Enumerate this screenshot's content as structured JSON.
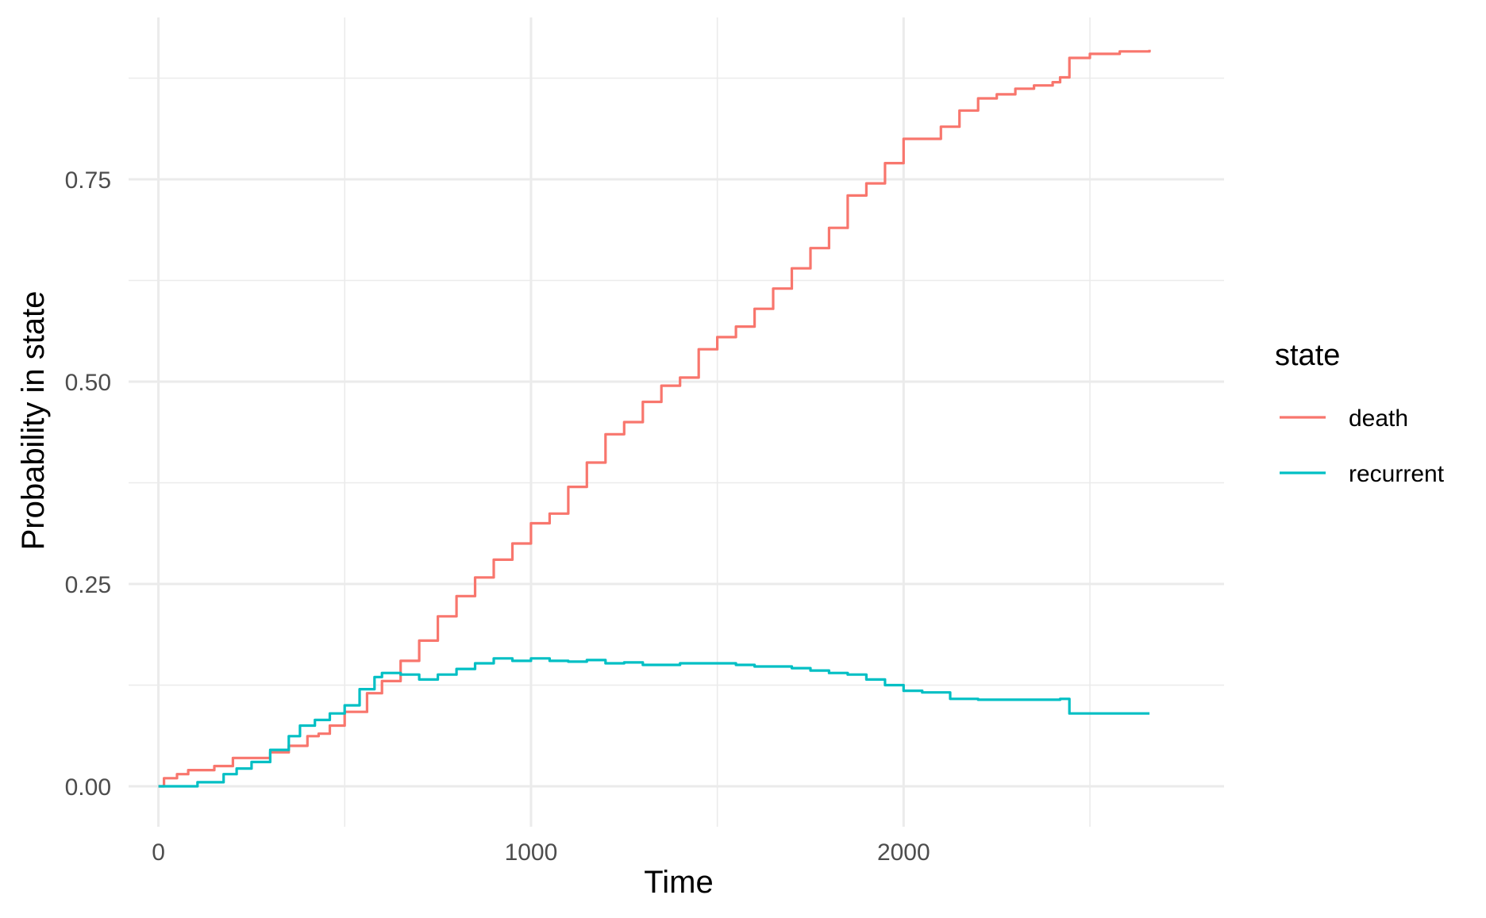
{
  "chart_data": {
    "type": "line",
    "title": "",
    "xlabel": "Time",
    "ylabel": "Probability in state",
    "xlim": [
      -80,
      2860
    ],
    "ylim": [
      -0.05,
      0.95
    ],
    "x_ticks": [
      0,
      1000,
      2000
    ],
    "x_tick_labels": [
      "0",
      "1000",
      "2000"
    ],
    "y_ticks": [
      0,
      0.25,
      0.5,
      0.75
    ],
    "y_tick_labels": [
      "0.00",
      "0.25",
      "0.50",
      "0.75"
    ],
    "grid": true,
    "legend": {
      "title": "state",
      "position": "right"
    },
    "series": [
      {
        "name": "death",
        "color": "#F8766D",
        "points": [
          [
            0,
            0
          ],
          [
            15,
            0.01
          ],
          [
            50,
            0.015
          ],
          [
            80,
            0.02
          ],
          [
            150,
            0.025
          ],
          [
            200,
            0.035
          ],
          [
            300,
            0.042
          ],
          [
            350,
            0.05
          ],
          [
            400,
            0.062
          ],
          [
            430,
            0.065
          ],
          [
            460,
            0.075
          ],
          [
            500,
            0.092
          ],
          [
            560,
            0.115
          ],
          [
            600,
            0.13
          ],
          [
            650,
            0.155
          ],
          [
            700,
            0.18
          ],
          [
            750,
            0.21
          ],
          [
            800,
            0.235
          ],
          [
            850,
            0.258
          ],
          [
            900,
            0.28
          ],
          [
            950,
            0.3
          ],
          [
            1000,
            0.325
          ],
          [
            1050,
            0.337
          ],
          [
            1100,
            0.37
          ],
          [
            1150,
            0.4
          ],
          [
            1200,
            0.435
          ],
          [
            1250,
            0.45
          ],
          [
            1300,
            0.475
          ],
          [
            1350,
            0.495
          ],
          [
            1400,
            0.505
          ],
          [
            1450,
            0.54
          ],
          [
            1500,
            0.555
          ],
          [
            1550,
            0.568
          ],
          [
            1600,
            0.59
          ],
          [
            1650,
            0.615
          ],
          [
            1700,
            0.64
          ],
          [
            1750,
            0.665
          ],
          [
            1800,
            0.69
          ],
          [
            1850,
            0.73
          ],
          [
            1900,
            0.745
          ],
          [
            1950,
            0.77
          ],
          [
            2000,
            0.8
          ],
          [
            2100,
            0.815
          ],
          [
            2150,
            0.835
          ],
          [
            2200,
            0.85
          ],
          [
            2250,
            0.855
          ],
          [
            2300,
            0.862
          ],
          [
            2350,
            0.866
          ],
          [
            2400,
            0.87
          ],
          [
            2420,
            0.876
          ],
          [
            2440,
            0.876
          ],
          [
            2445,
            0.9
          ],
          [
            2500,
            0.905
          ],
          [
            2580,
            0.908
          ],
          [
            2660,
            0.91
          ]
        ]
      },
      {
        "name": "recurrent",
        "color": "#00BFC4",
        "points": [
          [
            0,
            0
          ],
          [
            100,
            0
          ],
          [
            105,
            0.005
          ],
          [
            160,
            0.005
          ],
          [
            175,
            0.015
          ],
          [
            210,
            0.022
          ],
          [
            250,
            0.03
          ],
          [
            300,
            0.045
          ],
          [
            350,
            0.062
          ],
          [
            380,
            0.075
          ],
          [
            420,
            0.082
          ],
          [
            460,
            0.09
          ],
          [
            500,
            0.1
          ],
          [
            540,
            0.12
          ],
          [
            580,
            0.135
          ],
          [
            600,
            0.14
          ],
          [
            650,
            0.138
          ],
          [
            700,
            0.132
          ],
          [
            750,
            0.138
          ],
          [
            800,
            0.145
          ],
          [
            850,
            0.152
          ],
          [
            900,
            0.158
          ],
          [
            950,
            0.155
          ],
          [
            1000,
            0.158
          ],
          [
            1050,
            0.155
          ],
          [
            1100,
            0.154
          ],
          [
            1150,
            0.156
          ],
          [
            1200,
            0.152
          ],
          [
            1250,
            0.153
          ],
          [
            1300,
            0.15
          ],
          [
            1350,
            0.15
          ],
          [
            1400,
            0.152
          ],
          [
            1500,
            0.152
          ],
          [
            1550,
            0.15
          ],
          [
            1600,
            0.148
          ],
          [
            1700,
            0.146
          ],
          [
            1750,
            0.143
          ],
          [
            1800,
            0.14
          ],
          [
            1850,
            0.138
          ],
          [
            1900,
            0.132
          ],
          [
            1950,
            0.125
          ],
          [
            2000,
            0.118
          ],
          [
            2050,
            0.116
          ],
          [
            2120,
            0.116
          ],
          [
            2125,
            0.108
          ],
          [
            2200,
            0.107
          ],
          [
            2300,
            0.107
          ],
          [
            2390,
            0.107
          ],
          [
            2420,
            0.108
          ],
          [
            2440,
            0.108
          ],
          [
            2445,
            0.09
          ],
          [
            2500,
            0.09
          ],
          [
            2600,
            0.09
          ],
          [
            2660,
            0.09
          ]
        ]
      }
    ]
  }
}
